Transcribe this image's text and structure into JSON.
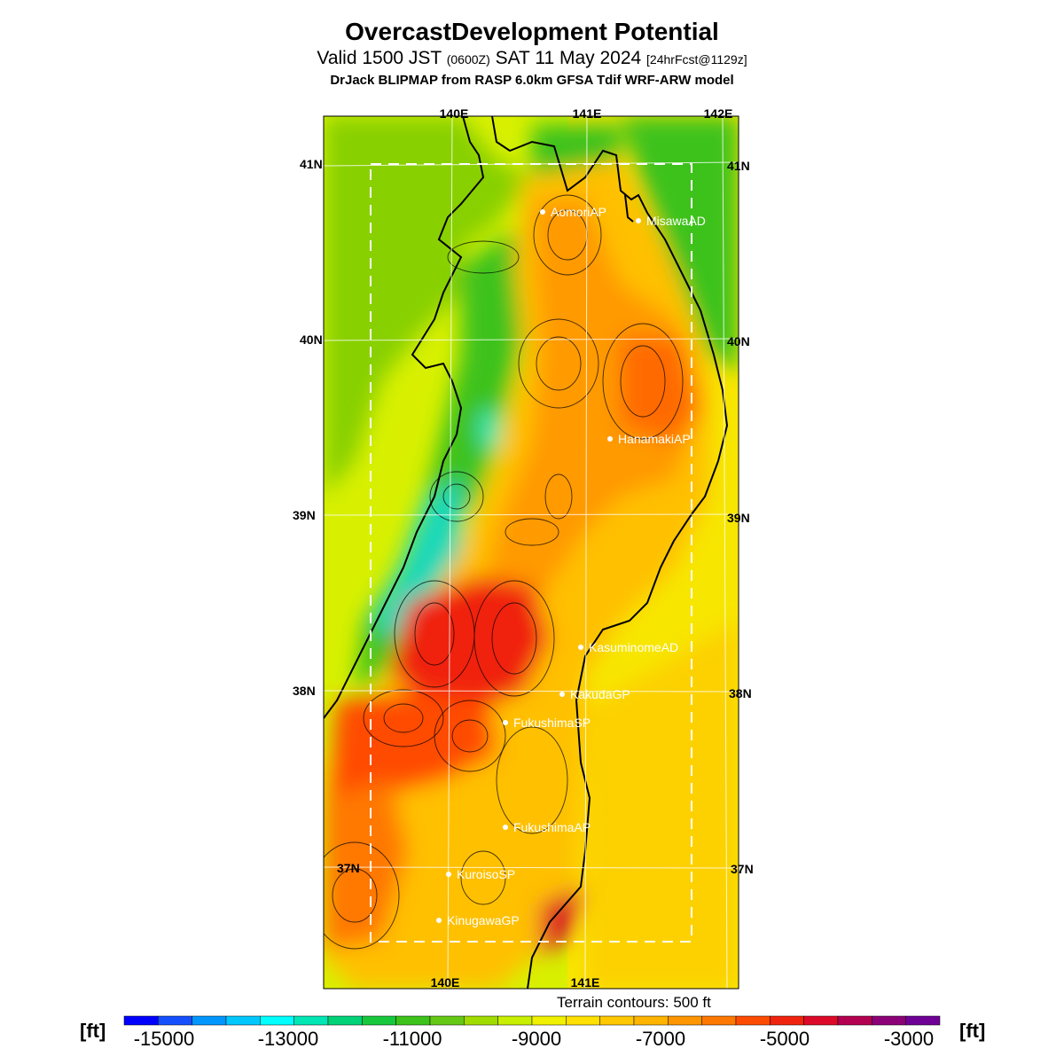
{
  "header": {
    "title": "OvercastDevelopment Potential",
    "valid_prefix": "Valid 1500 JST",
    "zulu": "(0600Z)",
    "valid_date": "SAT 11 May 2024",
    "forecast_tag": "[24hrFcst@1129z]",
    "model": "DrJack BLIPMAP from RASP 6.0km GFSA Tdif WRF-ARW model"
  },
  "map": {
    "lon_labels_top": [
      "140E",
      "141E",
      "142E"
    ],
    "lon_labels_bottom": [
      "140E",
      "141E"
    ],
    "lat_labels_left": [
      "41N",
      "40N",
      "39N",
      "38N",
      "37N"
    ],
    "lat_labels_right": [
      "41N",
      "40N",
      "39N",
      "38N",
      "37N"
    ],
    "stations": [
      {
        "name": "AomoriAP"
      },
      {
        "name": "MisawaAD"
      },
      {
        "name": "HanamakiAP"
      },
      {
        "name": "KasuminomeAD"
      },
      {
        "name": "KakudaGP"
      },
      {
        "name": "FukushimaSP"
      },
      {
        "name": "FukushimaAP"
      },
      {
        "name": "KuroisoSP"
      },
      {
        "name": "KinugawaGP"
      }
    ],
    "colors": {
      "sea_jp": "#d8f000",
      "pacific": "#f0e800",
      "land_green": "#3cc21a",
      "orange": "#ffa600",
      "red": "#f0240e"
    }
  },
  "terrain_note": "Terrain contours: 500 ft",
  "colorbar": {
    "unit": "[ft]",
    "labels": [
      "-15000",
      "-13000",
      "-11000",
      "-9000",
      "-7000",
      "-5000",
      "-3000"
    ],
    "colors": [
      "#0000ff",
      "#1450ff",
      "#0096ff",
      "#00c8ff",
      "#00ffff",
      "#00e6b4",
      "#00d278",
      "#18c83c",
      "#3cc21a",
      "#64c814",
      "#a0dc00",
      "#c8ee00",
      "#f0f000",
      "#ffe000",
      "#ffc800",
      "#ffb400",
      "#ff9600",
      "#ff7800",
      "#ff4b00",
      "#f0240e",
      "#dc0a28",
      "#b40050",
      "#8c0078",
      "#6e0096"
    ]
  }
}
